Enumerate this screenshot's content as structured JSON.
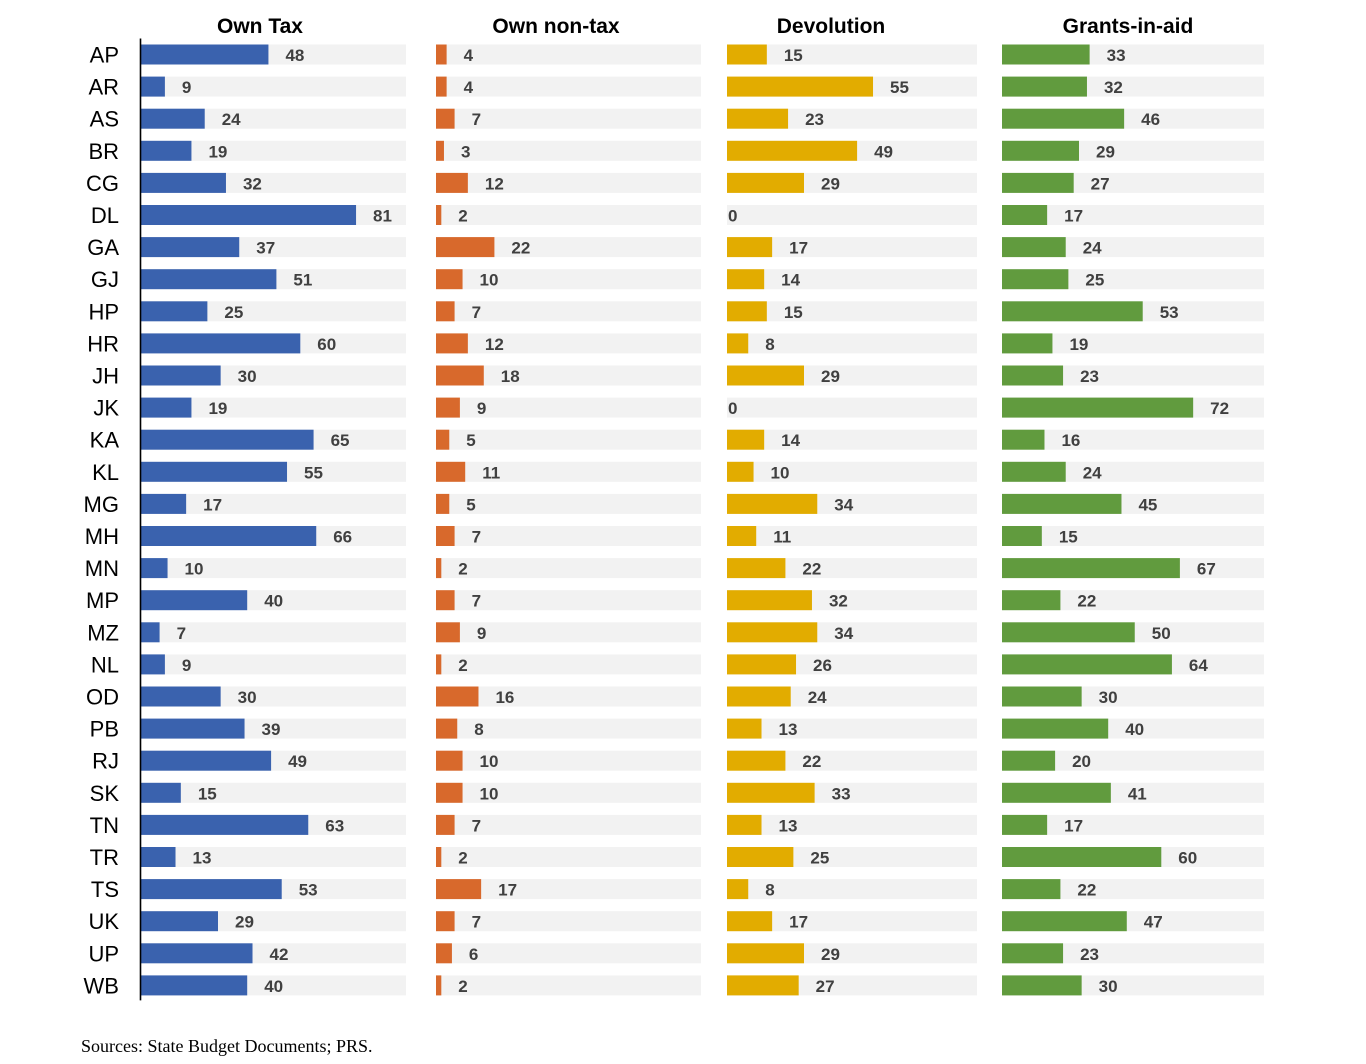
{
  "chart_data": {
    "type": "bar",
    "orientation": "horizontal",
    "categories": [
      "AP",
      "AR",
      "AS",
      "BR",
      "CG",
      "DL",
      "GA",
      "GJ",
      "HP",
      "HR",
      "JH",
      "JK",
      "KA",
      "KL",
      "MG",
      "MH",
      "MN",
      "MP",
      "MZ",
      "NL",
      "OD",
      "PB",
      "RJ",
      "SK",
      "TN",
      "TR",
      "TS",
      "UK",
      "UP",
      "WB"
    ],
    "series": [
      {
        "name": "Own Tax",
        "color": "#3A62AE",
        "values": [
          48,
          9,
          24,
          19,
          32,
          81,
          37,
          51,
          25,
          60,
          30,
          19,
          65,
          55,
          17,
          66,
          10,
          40,
          7,
          9,
          30,
          39,
          49,
          15,
          63,
          13,
          53,
          29,
          42,
          40
        ]
      },
      {
        "name": "Own non-tax",
        "color": "#D8692C",
        "values": [
          4,
          4,
          7,
          3,
          12,
          2,
          22,
          10,
          7,
          12,
          18,
          9,
          5,
          11,
          5,
          7,
          2,
          7,
          9,
          2,
          16,
          8,
          10,
          10,
          7,
          2,
          17,
          7,
          6,
          2
        ]
      },
      {
        "name": "Devolution",
        "color": "#E2AC00",
        "values": [
          15,
          55,
          23,
          49,
          29,
          0,
          17,
          14,
          15,
          8,
          29,
          0,
          14,
          10,
          34,
          11,
          22,
          32,
          34,
          26,
          24,
          13,
          22,
          33,
          13,
          25,
          8,
          17,
          29,
          27
        ]
      },
      {
        "name": "Grants-in-aid",
        "color": "#619B3E",
        "values": [
          33,
          32,
          46,
          29,
          27,
          17,
          24,
          25,
          53,
          19,
          23,
          72,
          16,
          24,
          45,
          15,
          67,
          22,
          50,
          64,
          30,
          40,
          20,
          41,
          17,
          60,
          22,
          47,
          23,
          30
        ]
      }
    ],
    "xlim": [
      0,
      100
    ],
    "grid": false,
    "legend": "none",
    "source": "Sources: State Budget Documents; PRS."
  }
}
